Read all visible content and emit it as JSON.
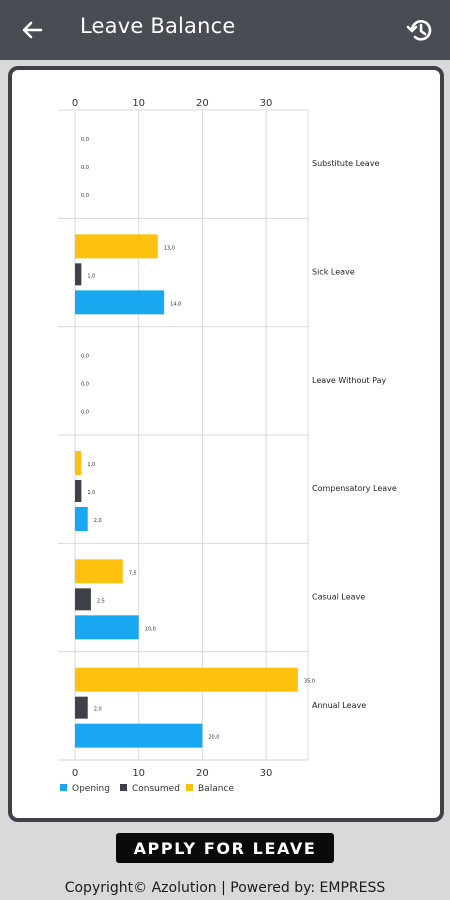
{
  "appbar": {
    "title": "Leave Balance",
    "back_icon": "arrow-left-icon",
    "history_icon": "history-icon"
  },
  "colors": {
    "appbar": "#474d52",
    "opening": "#1aa7f2",
    "consumed": "#3c4247",
    "balance": "#fdc10e"
  },
  "chart_data": {
    "type": "bar",
    "orientation": "horizontal",
    "categories": [
      "Substitute Leave",
      "Sick Leave",
      "Leave Without Pay",
      "Compensatory Leave",
      "Casual Leave",
      "Annual Leave"
    ],
    "series": [
      {
        "name": "Opening",
        "values": [
          0.0,
          14.0,
          0.0,
          2.0,
          10.0,
          20.0
        ]
      },
      {
        "name": "Consumed",
        "values": [
          0.0,
          1.0,
          0.0,
          1.0,
          2.5,
          2.0
        ]
      },
      {
        "name": "Balance",
        "values": [
          0.0,
          13.0,
          0.0,
          1.0,
          7.5,
          35.0
        ]
      }
    ],
    "value_labels": {
      "Opening": [
        "0,0",
        "14,0",
        "0,0",
        "2,0",
        "10,0",
        "20,0"
      ],
      "Consumed": [
        "0,0",
        "1,0",
        "0,0",
        "1,0",
        "2,5",
        "2,0"
      ],
      "Balance": [
        "0,0",
        "13,0",
        "0,0",
        "1,0",
        "7,5",
        "35,0"
      ]
    },
    "xticks": [
      "0",
      "10",
      "20",
      "30"
    ],
    "xlim": [
      0,
      38
    ],
    "grid": true,
    "legend_position": "bottom-left"
  },
  "actions": {
    "apply_label": "APPLY FOR LEAVE"
  },
  "footer": {
    "text": "Copyright© Azolution | Powered by: EMPRESS"
  }
}
